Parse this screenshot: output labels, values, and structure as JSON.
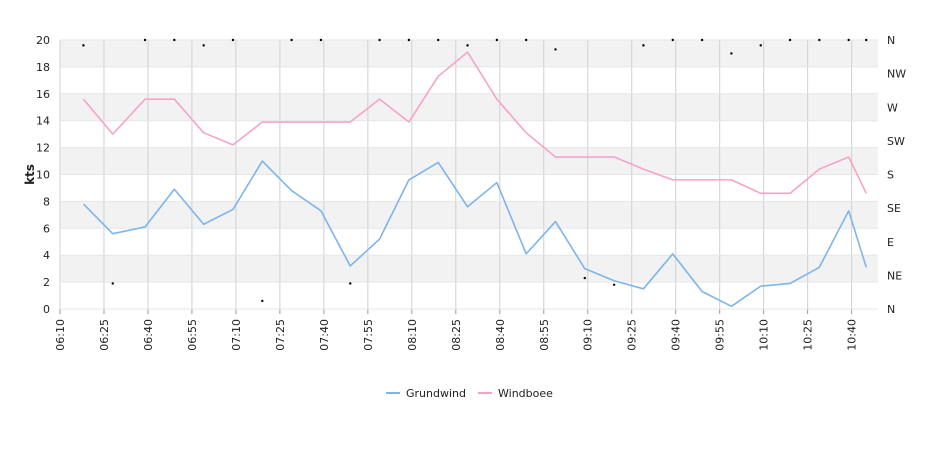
{
  "chart_data": {
    "type": "line",
    "ylabel": "kts",
    "ylim": [
      0,
      20
    ],
    "y_ticks": [
      "0",
      "2",
      "4",
      "6",
      "8",
      "10",
      "12",
      "14",
      "16",
      "18",
      "20"
    ],
    "right_axis_ticks": [
      "N",
      "NE",
      "E",
      "SE",
      "S",
      "SW",
      "W",
      "NW",
      "N"
    ],
    "x_tick_labels": [
      "06:10",
      "06:25",
      "06:40",
      "06:55",
      "07:10",
      "07:25",
      "07:40",
      "07:55",
      "08:10",
      "08:25",
      "08:40",
      "08:55",
      "09:10",
      "09:25",
      "09:40",
      "09:55",
      "10:10",
      "10:25",
      "10:40"
    ],
    "x_times": [
      "06:18",
      "06:28",
      "06:39",
      "06:49",
      "06:59",
      "07:09",
      "07:19",
      "07:29",
      "07:39",
      "07:49",
      "07:59",
      "08:09",
      "08:19",
      "08:29",
      "08:39",
      "08:49",
      "08:59",
      "09:09",
      "09:19",
      "09:29",
      "09:39",
      "09:49",
      "09:59",
      "10:09",
      "10:19",
      "10:29",
      "10:39",
      "10:45"
    ],
    "grid": true,
    "legend_position": "bottom",
    "series": [
      {
        "name": "Grundwind",
        "color": "#7cb5ec",
        "values": [
          7.8,
          5.6,
          6.1,
          8.9,
          6.3,
          7.4,
          11.0,
          8.8,
          7.3,
          3.2,
          5.2,
          9.6,
          10.9,
          7.6,
          9.4,
          4.1,
          6.5,
          3.0,
          2.1,
          1.5,
          4.1,
          1.3,
          0.2,
          1.7,
          1.9,
          3.1,
          7.3,
          3.1
        ]
      },
      {
        "name": "Windboee",
        "color": "#f7a3c9",
        "values": [
          15.6,
          13.0,
          15.6,
          15.6,
          13.1,
          12.2,
          13.9,
          13.9,
          13.9,
          13.9,
          15.6,
          13.9,
          17.3,
          19.1,
          15.6,
          13.1,
          11.3,
          11.3,
          11.3,
          10.4,
          9.6,
          9.6,
          9.6,
          8.6,
          8.6,
          10.4,
          11.3,
          8.6
        ]
      }
    ],
    "direction_points": [
      [
        0,
        19.6
      ],
      [
        1,
        1.9
      ],
      [
        2,
        20.0
      ],
      [
        3,
        20.0
      ],
      [
        4,
        19.6
      ],
      [
        5,
        20.0
      ],
      [
        6,
        0.6
      ],
      [
        7,
        20.0
      ],
      [
        8,
        20.0
      ],
      [
        9,
        1.9
      ],
      [
        10,
        20.0
      ],
      [
        11,
        20.0
      ],
      [
        12,
        20.0
      ],
      [
        13,
        19.6
      ],
      [
        14,
        20.0
      ],
      [
        15,
        20.0
      ],
      [
        16,
        19.3
      ],
      [
        17,
        2.3
      ],
      [
        18,
        1.8
      ],
      [
        19,
        19.6
      ],
      [
        20,
        20.0
      ],
      [
        21,
        20.0
      ],
      [
        22,
        19.0
      ],
      [
        23,
        19.6
      ],
      [
        24,
        20.0
      ],
      [
        25,
        20.0
      ],
      [
        26,
        20.0
      ],
      [
        27,
        20.0
      ]
    ]
  }
}
